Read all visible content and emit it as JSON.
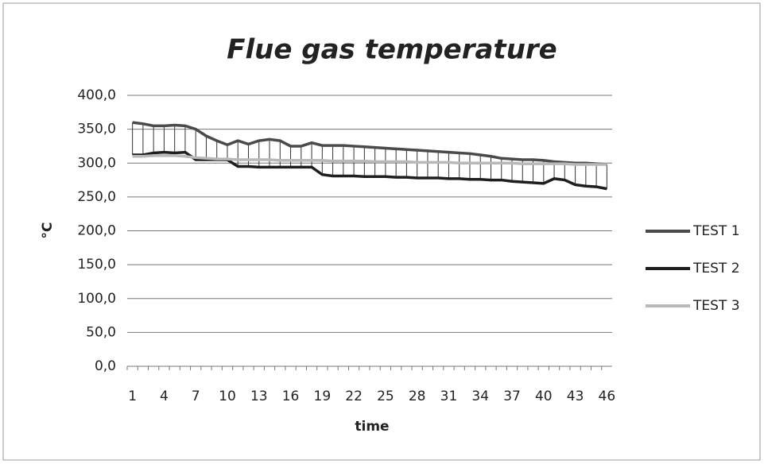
{
  "chart_data": {
    "type": "line",
    "title": "Flue gas temperature",
    "x_label": "time",
    "y_label": "°C",
    "categories": [
      1,
      null,
      null,
      4,
      null,
      null,
      7,
      null,
      null,
      10,
      null,
      null,
      13,
      null,
      null,
      16,
      null,
      null,
      19,
      null,
      null,
      22,
      null,
      null,
      25,
      null,
      null,
      28,
      null,
      null,
      31,
      null,
      null,
      34,
      null,
      null,
      37,
      null,
      null,
      40,
      null,
      null,
      43,
      null,
      null,
      46
    ],
    "series": [
      {
        "name": "TEST 1",
        "color": "#4a4a4a",
        "values": [
          360,
          358,
          355,
          355,
          356,
          355,
          350,
          340,
          333,
          327,
          333,
          328,
          333,
          335,
          333,
          325,
          325,
          330,
          326,
          326,
          326,
          325,
          324,
          323,
          322,
          321,
          320,
          319,
          318,
          317,
          316,
          315,
          314,
          312,
          310,
          307,
          306,
          305,
          305,
          304,
          302,
          301,
          300,
          300,
          299,
          298
        ]
      },
      {
        "name": "TEST 2",
        "color": "#1e1e1e",
        "values": [
          312,
          312,
          315,
          316,
          315,
          316,
          305,
          305,
          305,
          305,
          295,
          295,
          294,
          294,
          294,
          294,
          294,
          294,
          283,
          281,
          281,
          281,
          280,
          280,
          280,
          279,
          279,
          278,
          278,
          278,
          277,
          277,
          276,
          276,
          275,
          275,
          273,
          272,
          271,
          270,
          277,
          275,
          268,
          266,
          265,
          262
        ]
      },
      {
        "name": "TEST 3",
        "color": "#b8b8b8",
        "values": [
          310,
          310,
          311,
          311,
          311,
          310,
          308,
          307,
          306,
          306,
          305,
          305,
          305,
          305,
          304,
          304,
          304,
          304,
          304,
          303,
          303,
          303,
          303,
          302,
          302,
          302,
          302,
          301,
          301,
          301,
          301,
          300,
          300,
          300,
          300,
          300,
          300,
          299,
          299,
          299,
          299,
          299,
          298,
          298,
          298,
          298
        ]
      }
    ],
    "ylim": [
      0,
      400
    ],
    "yticks": [
      {
        "value": 0,
        "label": "0,0"
      },
      {
        "value": 50,
        "label": "50,0"
      },
      {
        "value": 100,
        "label": "100,0"
      },
      {
        "value": 150,
        "label": "150,0"
      },
      {
        "value": 200,
        "label": "200,0"
      },
      {
        "value": 250,
        "label": "250,0"
      },
      {
        "value": 300,
        "label": "300,0"
      },
      {
        "value": 350,
        "label": "350,0"
      },
      {
        "value": 400,
        "label": "400,0"
      }
    ],
    "grid": true,
    "hilo_lines": true,
    "legend": "right"
  }
}
